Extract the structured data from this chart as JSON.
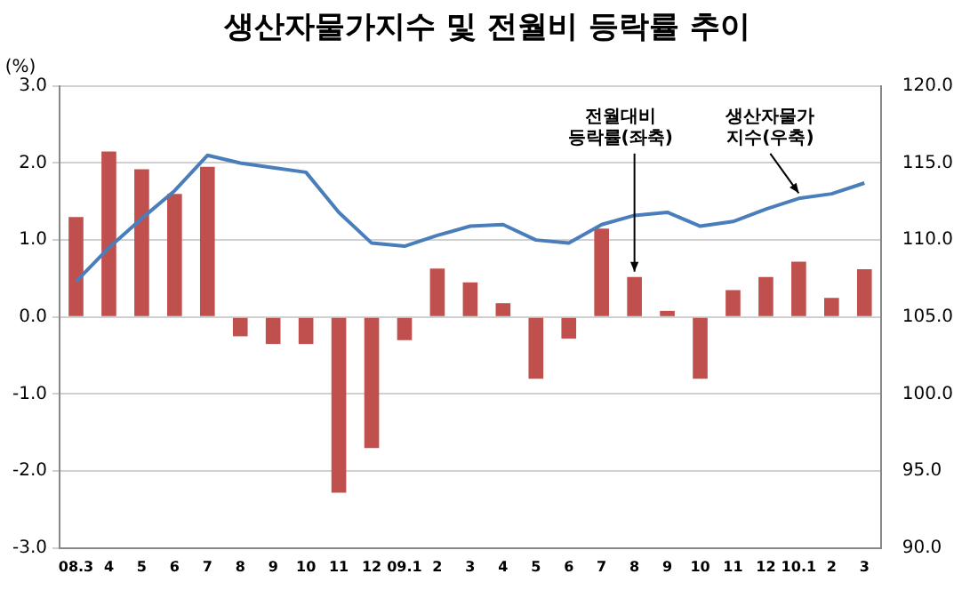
{
  "chart_data": {
    "type": "bar",
    "title": "생산자물가지수 및 전월비 등락률 추이",
    "ylabel": "(%)",
    "categories": [
      "08.3",
      "4",
      "5",
      "6",
      "7",
      "8",
      "9",
      "10",
      "11",
      "12",
      "09.1",
      "2",
      "3",
      "4",
      "5",
      "6",
      "7",
      "8",
      "9",
      "10",
      "11",
      "12",
      "10.1",
      "2",
      "3"
    ],
    "series": [
      {
        "name": "전월대비 등락률(좌축)",
        "color": "#c0504d",
        "values": [
          1.3,
          2.15,
          1.92,
          1.6,
          1.95,
          -0.25,
          -0.35,
          -0.35,
          -2.28,
          -1.7,
          -0.3,
          0.63,
          0.45,
          0.18,
          -0.8,
          -0.28,
          1.15,
          0.52,
          0.08,
          -0.8,
          0.35,
          0.52,
          0.72,
          0.25,
          0.62
        ]
      },
      {
        "name": "생산자물가 지수(우축)",
        "type": "line",
        "axis": "y2",
        "color": "#4a7ebb",
        "values": [
          107.3,
          109.5,
          111.4,
          113.2,
          115.5,
          115.0,
          114.7,
          114.4,
          111.8,
          109.8,
          109.6,
          110.3,
          110.9,
          111.0,
          110.0,
          109.8,
          111.0,
          111.6,
          111.8,
          110.9,
          111.2,
          112.0,
          112.7,
          113.0,
          113.7
        ]
      }
    ],
    "ylim": [
      -3,
      3
    ],
    "yticks": [
      {
        "value": -3,
        "label": "-3.0"
      },
      {
        "value": -2,
        "label": "-2.0"
      },
      {
        "value": -1,
        "label": "-1.0"
      },
      {
        "value": 0,
        "label": "0.0"
      },
      {
        "value": 1,
        "label": "1.0"
      },
      {
        "value": 2,
        "label": "2.0"
      },
      {
        "value": 3,
        "label": "3.0"
      }
    ],
    "y2lim": [
      90,
      120
    ],
    "y2ticks": [
      {
        "value": 90,
        "label": "90.0"
      },
      {
        "value": 95,
        "label": "95.0"
      },
      {
        "value": 100,
        "label": "100.0"
      },
      {
        "value": 105,
        "label": "105.0"
      },
      {
        "value": 110,
        "label": "110.0"
      },
      {
        "value": 115,
        "label": "115.0"
      },
      {
        "value": 120,
        "label": "120.0"
      }
    ],
    "grid": "y",
    "legend": false,
    "marker": "none",
    "line_style": "solid"
  }
}
